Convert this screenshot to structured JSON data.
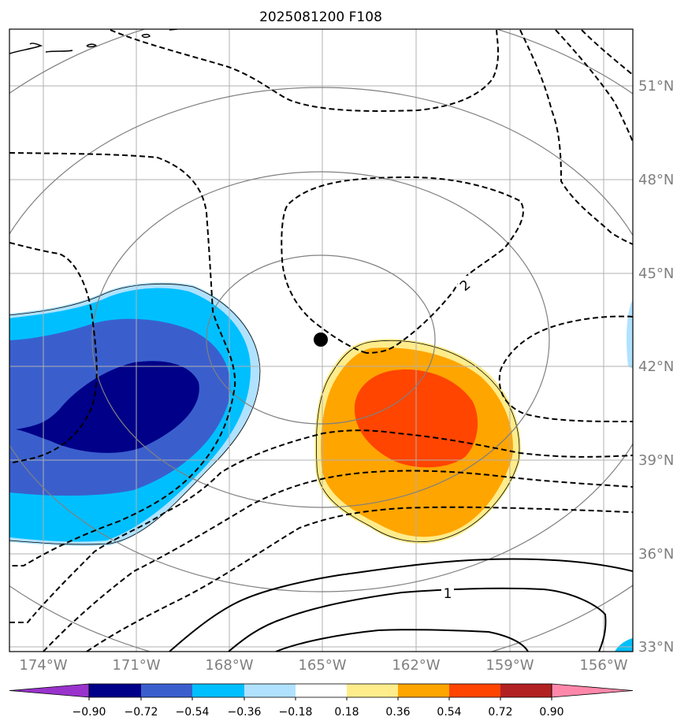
{
  "title": "2025081200 F108",
  "lat_labels": [
    "51°N",
    "48°N",
    "45°N",
    "42°N",
    "39°N",
    "36°N",
    "33°N"
  ],
  "lon_labels": [
    "174°W",
    "171°W",
    "168°W",
    "165°W",
    "162°W",
    "159°W",
    "156°W"
  ],
  "colorbar": {
    "ticks": [
      "−0.90",
      "−0.72",
      "−0.54",
      "−0.36",
      "−0.18",
      "0.18",
      "0.36",
      "0.54",
      "0.72",
      "0.90"
    ],
    "colors": [
      "#9933cc",
      "#000088",
      "#3a5fcd",
      "#00bfff",
      "#b0e2ff",
      "#ffffff",
      "#ffec8b",
      "#ffa500",
      "#ff4500",
      "#b22222",
      "#ff88aa"
    ]
  },
  "contour_labels": [
    "2",
    "1"
  ],
  "colors": {
    "grid": "#b0b0b0",
    "range_rings": "#808080",
    "contour": "#000000",
    "label_text": "#7f7f7f"
  }
}
